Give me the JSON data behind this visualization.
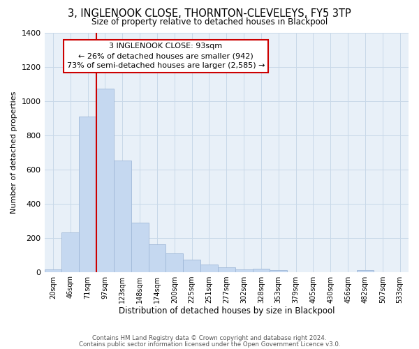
{
  "title": "3, INGLENOOK CLOSE, THORNTON-CLEVELEYS, FY5 3TP",
  "subtitle": "Size of property relative to detached houses in Blackpool",
  "xlabel": "Distribution of detached houses by size in Blackpool",
  "ylabel": "Number of detached properties",
  "bar_labels": [
    "20sqm",
    "46sqm",
    "71sqm",
    "97sqm",
    "123sqm",
    "148sqm",
    "174sqm",
    "200sqm",
    "225sqm",
    "251sqm",
    "277sqm",
    "302sqm",
    "328sqm",
    "353sqm",
    "379sqm",
    "405sqm",
    "430sqm",
    "456sqm",
    "482sqm",
    "507sqm",
    "533sqm"
  ],
  "bar_values": [
    15,
    230,
    910,
    1070,
    650,
    290,
    160,
    110,
    72,
    42,
    25,
    15,
    18,
    10,
    0,
    0,
    0,
    0,
    12,
    0,
    0
  ],
  "bar_color": "#c5d8f0",
  "bar_edge_color": "#a0b8d8",
  "vline_color": "#cc0000",
  "ylim": [
    0,
    1400
  ],
  "yticks": [
    0,
    200,
    400,
    600,
    800,
    1000,
    1200,
    1400
  ],
  "annotation_title": "3 INGLENOOK CLOSE: 93sqm",
  "annotation_line1": "← 26% of detached houses are smaller (942)",
  "annotation_line2": "73% of semi-detached houses are larger (2,585) →",
  "annotation_box_color": "#ffffff",
  "annotation_box_edge": "#cc0000",
  "footnote1": "Contains HM Land Registry data © Crown copyright and database right 2024.",
  "footnote2": "Contains public sector information licensed under the Open Government Licence v3.0.",
  "background_color": "#ffffff",
  "grid_color": "#c8d8e8"
}
